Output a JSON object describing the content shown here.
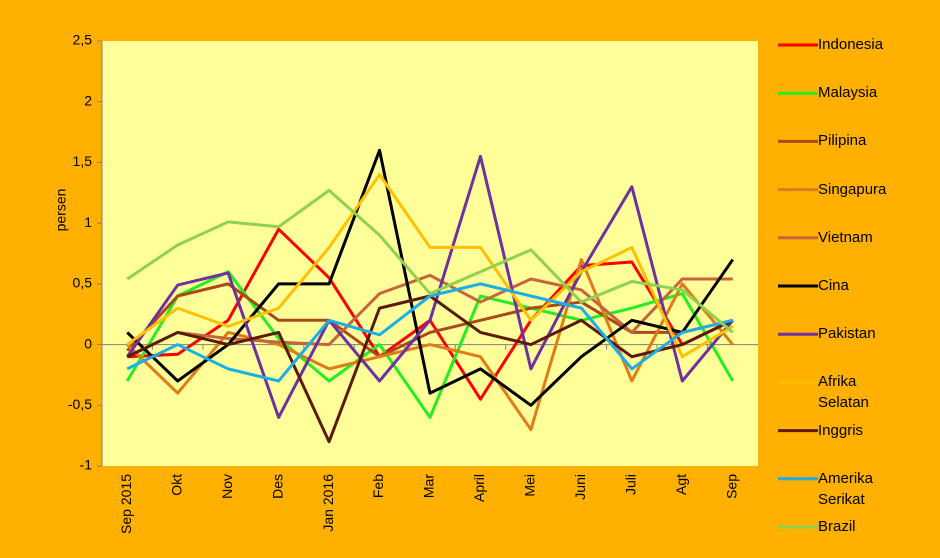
{
  "chart_data": {
    "type": "line",
    "y_label": "persen",
    "categories": [
      "Sep 2015",
      "Okt",
      "Nov",
      "Des",
      "Jan 2016",
      "Feb",
      "Mar",
      "April",
      "Mei",
      "Juni",
      "Juli",
      "Agt",
      "Sep"
    ],
    "ylim": [
      -1,
      2.5
    ],
    "yticks": [
      -1,
      {
        "value": -0.5,
        "label": "-0,5"
      },
      0,
      {
        "value": 0.5,
        "label": "0,5"
      },
      1,
      {
        "value": 1.5,
        "label": "1,5"
      },
      2,
      {
        "value": 2.5,
        "label": "2,5"
      }
    ],
    "grid": false,
    "legend": "right",
    "series": [
      {
        "name": "Indonesia",
        "color": "#FF0000",
        "values": [
          -0.1,
          -0.08,
          0.2,
          0.95,
          0.55,
          -0.1,
          0.2,
          -0.45,
          0.2,
          0.65,
          0.68,
          0,
          0.2
        ]
      },
      {
        "name": "Malaysia",
        "color": "#22EE22",
        "values": [
          -0.3,
          0.4,
          0.6,
          0.05,
          -0.3,
          0,
          -0.6,
          0.4,
          0.3,
          0.2,
          0.3,
          0.42,
          -0.3
        ]
      },
      {
        "name": "Pilipina",
        "color": "#A84A1E",
        "values": [
          -0.05,
          0.4,
          0.5,
          0.2,
          0.2,
          -0.1,
          0.1,
          0.2,
          0.3,
          0.35,
          0.1,
          0.1,
          0.2
        ]
      },
      {
        "name": "Singapura",
        "color": "#E07B1A",
        "values": [
          0,
          -0.4,
          0.1,
          0,
          -0.2,
          -0.1,
          0,
          -0.1,
          -0.7,
          0.7,
          -0.3,
          0.5,
          0
        ]
      },
      {
        "name": "Vietnam",
        "color": "#C8643C",
        "values": [
          -0.1,
          0.1,
          0.05,
          0.02,
          0,
          0.42,
          0.57,
          0.35,
          0.54,
          0.45,
          0.1,
          0.54,
          0.54
        ]
      },
      {
        "name": "Cina",
        "color": "#000000",
        "values": [
          0.1,
          -0.3,
          0,
          0.5,
          0.5,
          1.6,
          -0.4,
          -0.2,
          -0.5,
          -0.1,
          0.2,
          0.1,
          0.7
        ]
      },
      {
        "name": "Pakistan",
        "color": "#7030A0",
        "values": [
          -0.1,
          0.49,
          0.59,
          -0.6,
          0.2,
          -0.3,
          0.2,
          1.55,
          -0.2,
          0.6,
          1.3,
          -0.3,
          0.2
        ]
      },
      {
        "name": "Afrika Selatan",
        "color": "#FFC000",
        "values": [
          0,
          0.3,
          0.15,
          0.3,
          0.8,
          1.4,
          0.8,
          0.8,
          0.2,
          0.6,
          0.8,
          -0.1,
          0.15
        ]
      },
      {
        "name": "Inggris",
        "color": "#5C1A0A",
        "values": [
          -0.1,
          0.1,
          0,
          0.1,
          -0.8,
          0.3,
          0.4,
          0.1,
          0,
          0.2,
          -0.1,
          0,
          0.2
        ]
      },
      {
        "name": "Amerika Serikat",
        "color": "#1EAEE6",
        "values": [
          -0.2,
          0,
          -0.2,
          -0.3,
          0.2,
          0.08,
          0.4,
          0.5,
          0.4,
          0.3,
          -0.2,
          0.1,
          0.2
        ]
      },
      {
        "name": "Brazil",
        "color": "#92D050",
        "values": [
          0.54,
          0.82,
          1.01,
          0.97,
          1.27,
          0.9,
          0.42,
          0.6,
          0.78,
          0.35,
          0.52,
          0.45,
          0.1
        ]
      }
    ]
  }
}
